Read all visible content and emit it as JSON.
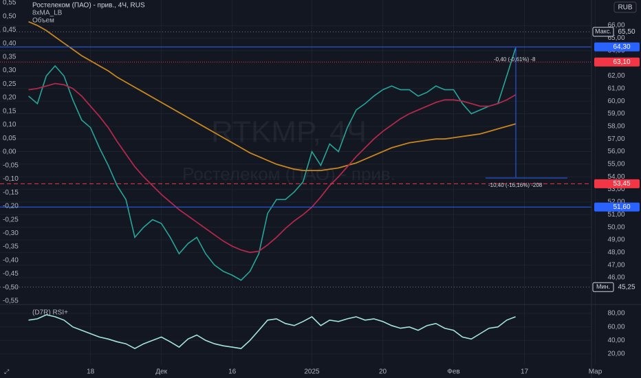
{
  "currency": "RUB",
  "watermark": [
    "RTKMP, 4Ч",
    "Ростелеком (ПАО) - прив."
  ],
  "annotations": [
    "-0,40 (-0,61%) -8",
    "-10,40 (-16,16%) -208"
  ],
  "chart_data": [
    {
      "type": "line",
      "title": "Ростелеком (ПАО) - прив., 4Ч, RUS",
      "indicator_labels": [
        "8xMA_LB",
        "Объем"
      ],
      "categories": [
        null,
        null,
        null,
        null,
        null,
        null,
        null,
        "18",
        null,
        null,
        null,
        null,
        null,
        null,
        null,
        "Дек",
        null,
        null,
        null,
        null,
        null,
        null,
        null,
        "16",
        null,
        null,
        null,
        null,
        null,
        null,
        null,
        null,
        "2025",
        null,
        null,
        null,
        null,
        null,
        null,
        null,
        "20",
        null,
        null,
        null,
        null,
        null,
        null,
        null,
        "Фев",
        null,
        null,
        null,
        null,
        null,
        null,
        null,
        "17",
        null,
        null,
        null,
        null,
        null,
        null,
        null,
        "Мар"
      ],
      "series": [
        {
          "color": "#26a69a",
          "values": [
            60.4,
            59.8,
            62.0,
            62.8,
            62.0,
            60.1,
            58.5,
            57.9,
            56.3,
            54.9,
            53.3,
            52.2,
            49.2,
            50.0,
            50.6,
            50.3,
            49.2,
            47.9,
            48.7,
            49.2,
            47.9,
            47.0,
            46.5,
            46.2,
            45.8,
            46.5,
            47.9,
            51.1,
            52.2,
            52.2,
            52.8,
            53.6,
            56.0,
            54.9,
            56.6,
            56.0,
            57.9,
            59.3,
            59.8,
            60.4,
            60.9,
            61.2,
            60.9,
            60.9,
            60.4,
            60.7,
            61.2,
            60.9,
            60.9,
            59.8,
            59.0,
            59.3,
            59.6,
            59.8,
            62.0,
            64.2,
            null,
            null,
            null,
            null,
            null,
            null,
            null,
            null,
            null
          ]
        },
        {
          "color": "#c8871e",
          "values": [
            66.3,
            66.0,
            65.6,
            65.1,
            64.6,
            64.1,
            63.6,
            63.2,
            62.8,
            62.4,
            61.9,
            61.5,
            61.1,
            60.7,
            60.3,
            59.9,
            59.5,
            59.1,
            58.7,
            58.3,
            57.9,
            57.5,
            57.1,
            56.7,
            56.3,
            55.9,
            55.6,
            55.3,
            55.0,
            54.8,
            54.6,
            54.5,
            54.5,
            54.5,
            54.6,
            54.7,
            54.9,
            55.1,
            55.4,
            55.7,
            56.0,
            56.3,
            56.5,
            56.7,
            56.8,
            56.9,
            57.0,
            57.0,
            57.1,
            57.2,
            57.3,
            57.4,
            57.6,
            57.8,
            58.0,
            58.2,
            null,
            null,
            null,
            null,
            null,
            null,
            null,
            null,
            null
          ]
        },
        {
          "color": "#b0284a",
          "values": [
            60.9,
            61.0,
            61.2,
            61.4,
            61.3,
            61.0,
            60.4,
            59.6,
            58.8,
            57.9,
            56.8,
            55.8,
            54.8,
            54.0,
            53.3,
            52.6,
            52.0,
            51.4,
            50.9,
            50.4,
            49.9,
            49.4,
            48.9,
            48.5,
            48.2,
            48.0,
            48.1,
            48.6,
            49.2,
            49.9,
            50.5,
            51.0,
            51.6,
            52.4,
            53.3,
            54.0,
            54.8,
            55.6,
            56.3,
            57.0,
            57.6,
            58.1,
            58.6,
            59.0,
            59.3,
            59.6,
            59.9,
            60.1,
            60.1,
            60.0,
            59.8,
            59.6,
            59.6,
            59.8,
            60.1,
            60.5,
            null,
            null,
            null,
            null,
            null,
            null,
            null,
            null,
            null
          ]
        }
      ],
      "ylim": [
        44.04,
        68.02
      ],
      "yticks": [
        {
          "value": 66,
          "label": "66,00"
        },
        {
          "value": 65,
          "label": "65,00"
        },
        {
          "value": 64,
          "label": "64,00"
        },
        {
          "value": 62,
          "label": "62,00"
        },
        {
          "value": 61,
          "label": "61,00"
        },
        {
          "value": 60,
          "label": "60,00"
        },
        {
          "value": 59,
          "label": "59,00"
        },
        {
          "value": 58,
          "label": "58,00"
        },
        {
          "value": 57,
          "label": "57,00"
        },
        {
          "value": 56,
          "label": "56,00"
        },
        {
          "value": 55,
          "label": "55,00"
        },
        {
          "value": 54,
          "label": "54,00"
        },
        {
          "value": 53,
          "label": "53,00"
        },
        {
          "value": 52,
          "label": "52,00"
        },
        {
          "value": 51,
          "label": "51,00"
        },
        {
          "value": 50,
          "label": "50,00"
        },
        {
          "value": 49,
          "label": "49,00"
        },
        {
          "value": 48,
          "label": "48,00"
        },
        {
          "value": 47,
          "label": "47,00"
        },
        {
          "value": 46,
          "label": "46,00"
        }
      ],
      "y2lim": [
        -0.555,
        0.56
      ],
      "y2ticks": [
        {
          "value": 0.55,
          "label": "0,55"
        },
        {
          "value": 0.5,
          "label": "0,50"
        },
        {
          "value": 0.45,
          "label": "0,45"
        },
        {
          "value": 0.4,
          "label": "0,40"
        },
        {
          "value": 0.35,
          "label": "0,35"
        },
        {
          "value": 0.3,
          "label": "0,30"
        },
        {
          "value": 0.25,
          "label": "0,25"
        },
        {
          "value": 0.2,
          "label": "0,20"
        },
        {
          "value": 0.15,
          "label": "0,15"
        },
        {
          "value": 0.1,
          "label": "0,10"
        },
        {
          "value": 0.05,
          "label": "0,05"
        },
        {
          "value": 0,
          "label": "0,00"
        },
        {
          "value": -0.05,
          "label": "-0,05"
        },
        {
          "value": -0.1,
          "label": "-0,10"
        },
        {
          "value": -0.15,
          "label": "-0,15"
        },
        {
          "value": -0.2,
          "label": "-0,20"
        },
        {
          "value": -0.25,
          "label": "-0,25"
        },
        {
          "value": -0.3,
          "label": "-0,30"
        },
        {
          "value": -0.35,
          "label": "-0,35"
        },
        {
          "value": -0.4,
          "label": "-0,40"
        },
        {
          "value": -0.45,
          "label": "-0,45"
        },
        {
          "value": -0.5,
          "label": "-0,50"
        },
        {
          "value": -0.55,
          "label": "-0,55"
        }
      ],
      "levels": [
        {
          "value": 64.3,
          "label": "64,30",
          "color": "#2962ff",
          "style": "solid"
        },
        {
          "value": 63.1,
          "label": "63,10",
          "color": "#f23645",
          "style": "dotted"
        },
        {
          "value": 53.45,
          "label": "53,45",
          "color": "#f23645",
          "style": "dashed"
        },
        {
          "value": 51.6,
          "label": "51,60",
          "color": "#2962ff",
          "style": "solid"
        }
      ],
      "markers": [
        {
          "name": "Макс.",
          "value": 65.5,
          "label": "65,50"
        },
        {
          "name": "Мин.",
          "value": 45.25,
          "label": "45,25"
        }
      ],
      "grid": true
    },
    {
      "type": "line",
      "title": "(D7R) RSI+",
      "series": [
        {
          "color": "#a5e6d8",
          "values": [
            70,
            72,
            78,
            75,
            70,
            60,
            55,
            50,
            45,
            42,
            38,
            35,
            28,
            35,
            40,
            45,
            38,
            30,
            42,
            48,
            40,
            35,
            32,
            30,
            28,
            40,
            55,
            70,
            72,
            65,
            62,
            68,
            75,
            62,
            70,
            68,
            72,
            75,
            70,
            72,
            68,
            62,
            58,
            60,
            55,
            62,
            65,
            58,
            55,
            45,
            42,
            50,
            58,
            60,
            70,
            75,
            null,
            null,
            null,
            null,
            null,
            null,
            null,
            null,
            null
          ]
        }
      ],
      "ylim": [
        4.7,
        91.2
      ],
      "yticks": [
        {
          "value": 80,
          "label": "80,00"
        },
        {
          "value": 60,
          "label": "60,00"
        },
        {
          "value": 40,
          "label": "40,00"
        },
        {
          "value": 20,
          "label": "20,00"
        }
      ],
      "grid": true
    }
  ]
}
